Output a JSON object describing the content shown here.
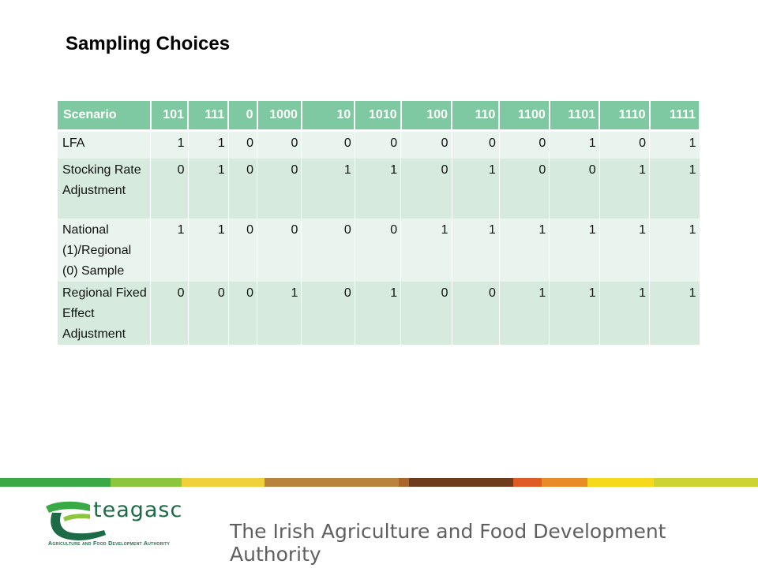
{
  "slide": {
    "title": "Sampling Choices"
  },
  "table": {
    "header": [
      "Scenario",
      "101",
      "111",
      "0",
      "1000",
      "10",
      "1010",
      "100",
      "110",
      "1100",
      "1101",
      "1110",
      "1111"
    ],
    "rows": [
      {
        "label": "LFA",
        "values": [
          "1",
          "1",
          "0",
          "0",
          "0",
          "0",
          "0",
          "0",
          "0",
          "1",
          "0",
          "1"
        ]
      },
      {
        "label": "Stocking Rate Adjustment",
        "values": [
          "0",
          "1",
          "0",
          "0",
          "1",
          "1",
          "0",
          "1",
          "0",
          "0",
          "1",
          "1"
        ]
      },
      {
        "label": "National (1)/Regional (0) Sample",
        "values": [
          "1",
          "1",
          "0",
          "0",
          "0",
          "0",
          "1",
          "1",
          "1",
          "1",
          "1",
          "1"
        ]
      },
      {
        "label": "Regional Fixed Effect Adjustment",
        "values": [
          "0",
          "0",
          "0",
          "1",
          "0",
          "1",
          "0",
          "0",
          "1",
          "1",
          "1",
          "1"
        ]
      }
    ]
  },
  "footer": {
    "logo_text": "teagasc",
    "logo_subtitle": "Agriculture and Food Development Authority",
    "tagline": "The Irish Agriculture and Food Development Authority",
    "stripe_colors": [
      "#3aaa47",
      "#8cc63e",
      "#f2d03b",
      "#e8c05a",
      "#b9833d",
      "#a9652a",
      "#e2652a",
      "#6e3c1c",
      "#e05a26",
      "#e98b27",
      "#f6d91b",
      "#cfd233"
    ]
  },
  "colors": {
    "header_bg": "#7ec8a2",
    "row_light": "#e9f4ee",
    "row_dark": "#d6ebdd",
    "brand_green": "#1c6b46"
  }
}
